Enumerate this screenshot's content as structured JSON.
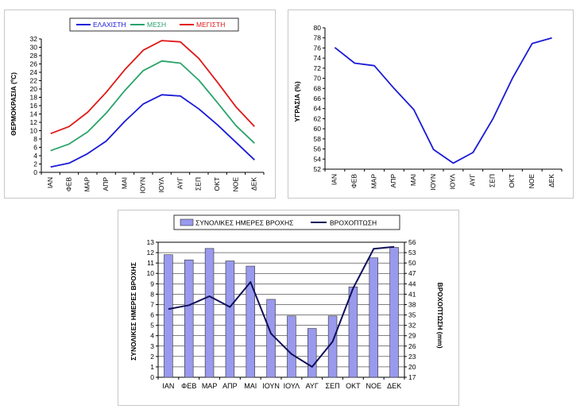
{
  "chart_data": [
    {
      "type": "line",
      "categories": [
        "ΙΑΝ",
        "ΦΕΒ",
        "ΜΑΡ",
        "ΑΠΡ",
        "ΜΑΙ",
        "ΙΟΥΝ",
        "ΙΟΥΛ",
        "ΑΥΓ",
        "ΣΕΠ",
        "ΟΚΤ",
        "ΝΟΕ",
        "ΔΕΚ"
      ],
      "series": [
        {
          "name": "ΕΛΑΧΙΣΤΗ",
          "color": "#1a1ad6",
          "values": [
            1.3,
            2.2,
            4.5,
            7.5,
            12.2,
            16.4,
            18.6,
            18.3,
            15.2,
            11.4,
            7.2,
            3.0
          ]
        },
        {
          "name": "ΜΕΣΗ",
          "color": "#2aa36b",
          "values": [
            5.2,
            6.8,
            9.7,
            14.2,
            19.6,
            24.4,
            26.7,
            26.2,
            22.1,
            16.7,
            11.2,
            7.0
          ]
        },
        {
          "name": "ΜΕΓΙΣΤΗ",
          "color": "#e01818",
          "values": [
            9.3,
            11.0,
            14.4,
            19.2,
            24.6,
            29.3,
            31.6,
            31.3,
            27.3,
            21.6,
            15.7,
            11.0
          ]
        }
      ],
      "title": "",
      "xlabel": "",
      "ylabel": "ΘΕΡΜΟΚΡΑΣΙΑ (ºC)",
      "ylim": [
        0,
        32
      ],
      "yticks": [
        0,
        2,
        4,
        6,
        8,
        10,
        12,
        14,
        16,
        18,
        20,
        22,
        24,
        26,
        28,
        30,
        32
      ],
      "legend": "top",
      "grid": false
    },
    {
      "type": "line",
      "categories": [
        "ΙΑΝ",
        "ΦΕΒ",
        "ΜΑΡ",
        "ΑΠΡ",
        "ΜΑΙ",
        "ΙΟΥΝ",
        "ΙΟΥΛ",
        "ΑΥΓ",
        "ΣΕΠ",
        "ΟΚΤ",
        "ΝΟΕ",
        "ΔΕΚ"
      ],
      "series": [
        {
          "color": "#1a1ad6",
          "values": [
            76.1,
            73.0,
            72.5,
            68.0,
            63.8,
            55.9,
            53.2,
            55.3,
            61.9,
            70.0,
            76.9,
            78.0
          ]
        }
      ],
      "title": "",
      "xlabel": "",
      "ylabel": "ΥΓΡΑΣΙΑ (%)",
      "ylim": [
        52,
        80
      ],
      "yticks": [
        52,
        54,
        56,
        58,
        60,
        62,
        64,
        66,
        68,
        70,
        72,
        74,
        76,
        78,
        80
      ],
      "grid": false
    },
    {
      "type": "bar",
      "categories": [
        "ΙΑΝ",
        "ΦΕΒ",
        "ΜΑΡ",
        "ΑΠΡ",
        "ΜΑΙ",
        "ΙΟΥΝ",
        "ΙΟΥΛ",
        "ΑΥΓ",
        "ΣΕΠ",
        "ΟΚΤ",
        "ΝΟΕ",
        "ΔΕΚ"
      ],
      "series": [
        {
          "name": "ΣΥΝΟΛΙΚΕΣ ΗΜΕΡΕΣ ΒΡΟΧΗΣ",
          "type": "bar",
          "axis": "left",
          "color": "#9999ee",
          "values": [
            11.8,
            11.3,
            12.4,
            11.2,
            10.7,
            7.5,
            5.9,
            4.7,
            5.9,
            8.7,
            11.5,
            12.5
          ]
        },
        {
          "name": "ΒΡΟΧΟΠΤΩΣΗ",
          "type": "line",
          "axis": "right",
          "color": "#10105a",
          "values": [
            36.7,
            37.8,
            40.4,
            37.3,
            44.5,
            29.6,
            23.7,
            20.0,
            27.3,
            42.7,
            54.1,
            54.7
          ]
        }
      ],
      "title": "",
      "xlabel": "",
      "ylabel": "ΣΥΝΟΛΙΚΕΣ ΗΜΕΡΕΣ ΒΡΟΧΗΣ",
      "ylim": [
        0,
        13
      ],
      "yticks": [
        0,
        1,
        2,
        3,
        4,
        5,
        6,
        7,
        8,
        9,
        10,
        11,
        12,
        13
      ],
      "y2label": "ΒΡΟΧΟΠΤΩΣΗ (mm)",
      "y2lim": [
        17,
        56
      ],
      "y2ticks": [
        17,
        20,
        23,
        26,
        29,
        32,
        35,
        38,
        41,
        44,
        47,
        50,
        53,
        56
      ],
      "legend": "top",
      "grid": true
    }
  ]
}
